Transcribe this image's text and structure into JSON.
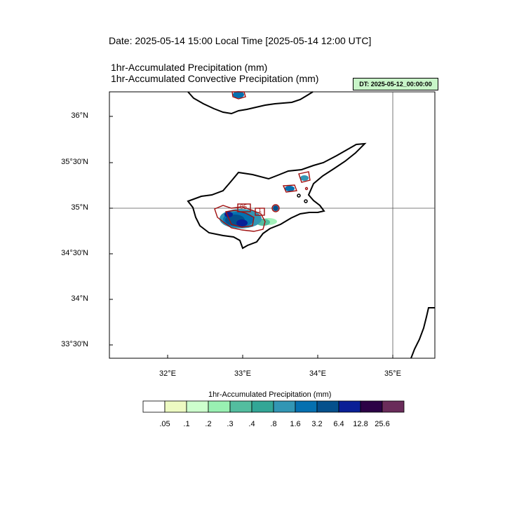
{
  "header": {
    "date_line": "Date: 2025-05-14  15:00 Local Time [2025-05-14  12:00 UTC]",
    "title_line_1": "1hr-Accumulated Precipitation   (mm)",
    "title_line_2": "1hr-Accumulated Convective Precipitation   (mm)",
    "dt_badge": "DT: 2025-05-12_00:00:00"
  },
  "map": {
    "lat_ticks": [
      "36°N",
      "35°30'N",
      "35°N",
      "34°30'N",
      "34°N",
      "33°30'N"
    ],
    "lon_ticks": [
      "32°E",
      "33°E",
      "34°E",
      "35°E"
    ],
    "contour_labels": [
      "05",
      "1"
    ]
  },
  "colorbar": {
    "title": "1hr-Accumulated Precipitation  (mm)",
    "labels": [
      ".05",
      ".1",
      ".2",
      ".3",
      ".4",
      ".8",
      "1.6",
      "3.2",
      "6.4",
      "12.8",
      "25.6"
    ],
    "colors": [
      "#ffffff",
      "#edfac2",
      "#cdffcd",
      "#99f0b2",
      "#53bd9f",
      "#32a696",
      "#3296b4",
      "#0570b0",
      "#05508c",
      "#0a1f96",
      "#2c0246",
      "#6a2c5a"
    ]
  }
}
